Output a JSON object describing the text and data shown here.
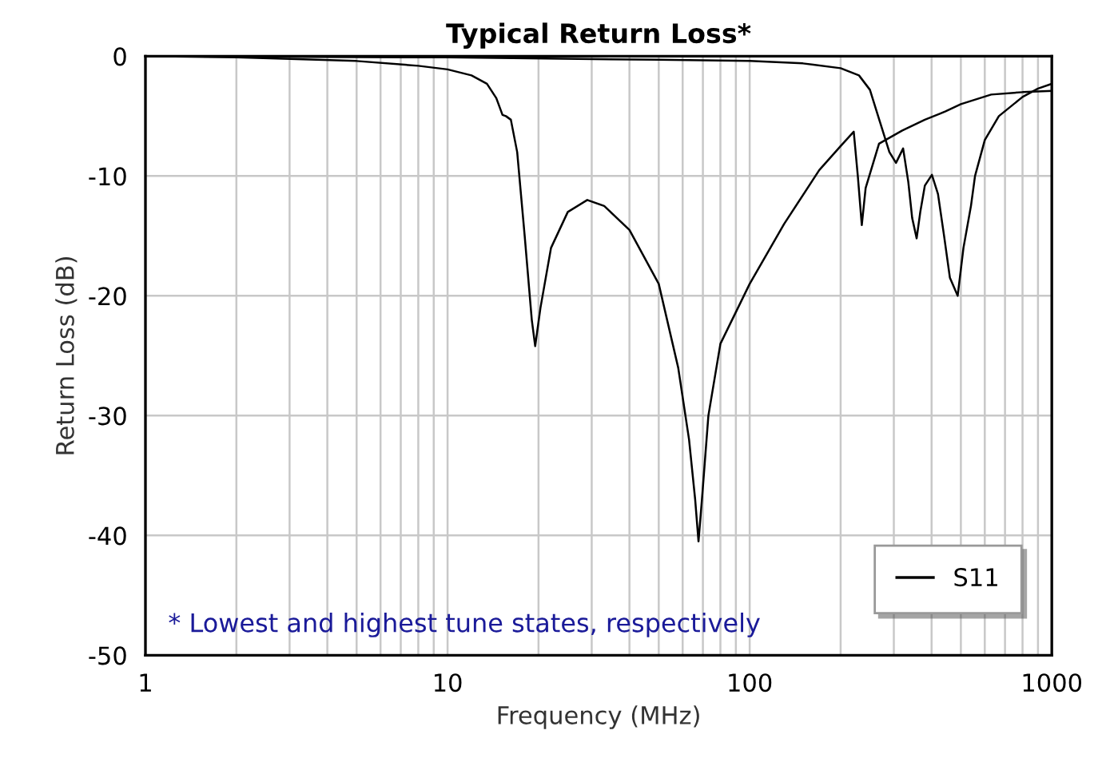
{
  "chart_data": {
    "type": "line",
    "title": "Typical Return Loss*",
    "xlabel": "Frequency (MHz)",
    "ylabel": "Return Loss (dB)",
    "annotations": [
      "* Lowest and highest tune states, respectively"
    ],
    "log": "x",
    "xlim": [
      1,
      1000
    ],
    "xticks": [
      1,
      10,
      100,
      1000
    ],
    "ylim": [
      -50,
      0
    ],
    "yticks": [
      -50,
      -40,
      -30,
      -20,
      -10,
      0
    ],
    "grid": true,
    "legend": "bottom right",
    "line_style": "solid",
    "marker": "none",
    "series": [
      {
        "name": "S11",
        "color": "#000000",
        "x": [
          1,
          2,
          5,
          8,
          10,
          12,
          13.5,
          14.5,
          15.2,
          15.6,
          16.2,
          17,
          18,
          19,
          19.5,
          20.3,
          22,
          25,
          29,
          33,
          40,
          50,
          58,
          63,
          66,
          67.7,
          69.5,
          73,
          80,
          100,
          130,
          170,
          200,
          221,
          228,
          235,
          242,
          268,
          320,
          380,
          426,
          445,
          500,
          630,
          800,
          1000
        ],
        "values": [
          0,
          -0.1,
          -0.4,
          -0.8,
          -1.1,
          -1.6,
          -2.3,
          -3.5,
          -4.9,
          -5.0,
          -5.3,
          -8,
          -15,
          -22,
          -24.2,
          -21,
          -16,
          -13,
          -12,
          -12.5,
          -14.5,
          -19,
          -26,
          -32,
          -37,
          -40.5,
          -37,
          -30,
          -24,
          -19,
          -14,
          -9.5,
          -7.5,
          -6.3,
          -10,
          -14.1,
          -11,
          -7.3,
          -6.2,
          -5.3,
          -4.8,
          -4.6,
          -4.0,
          -3.2,
          -3.0,
          -2.9
        ]
      },
      {
        "color": "#000000",
        "x": [
          1,
          10,
          50,
          100,
          150,
          200,
          230,
          250,
          270,
          290,
          305,
          322,
          335,
          345,
          357,
          367,
          380,
          401,
          420,
          440,
          460,
          488,
          510,
          540,
          557,
          600,
          668,
          800,
          900,
          1000
        ],
        "values": [
          0,
          -0.1,
          -0.3,
          -0.4,
          -0.6,
          -1.0,
          -1.6,
          -2.8,
          -5.5,
          -8.0,
          -8.9,
          -7.7,
          -10.5,
          -13.5,
          -15.2,
          -13,
          -10.8,
          -9.9,
          -11.5,
          -15,
          -18.5,
          -20,
          -16,
          -12.5,
          -10,
          -7,
          -5,
          -3.4,
          -2.7,
          -2.3
        ]
      }
    ]
  }
}
